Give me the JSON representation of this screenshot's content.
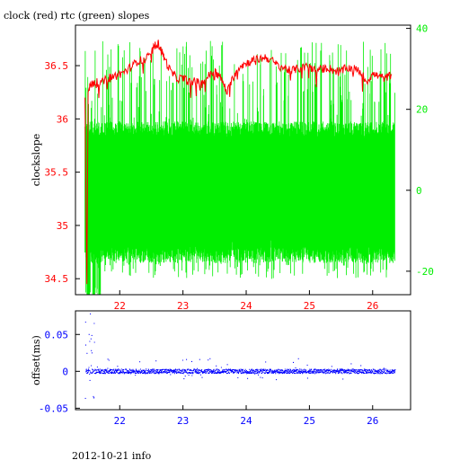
{
  "title": "clock (red) rtc (green) slopes",
  "footer": "2012-10-21 info",
  "colors": {
    "clock": "#ff0000",
    "rtc": "#00ee00",
    "offset": "#0000ff",
    "axis": "#000000"
  },
  "chart_data": [
    {
      "type": "line",
      "title": "clock (red) rtc (green) slopes",
      "ylabel": "clockslope",
      "xlim": [
        21.3,
        26.6
      ],
      "ylim": [
        34.35,
        36.88
      ],
      "y2lim": [
        -25.8,
        40.8
      ],
      "xticks": [
        22,
        23,
        24,
        25,
        26
      ],
      "xticklabels": [
        "22",
        "23",
        "24",
        "25",
        "26"
      ],
      "yticks": [
        34.5,
        35,
        35.5,
        36,
        36.5
      ],
      "yticklabels": [
        "34.5",
        "35",
        "35.5",
        "36",
        "36.5"
      ],
      "y2ticks": [
        -20,
        0,
        20,
        40
      ],
      "y2ticklabels": [
        "-20",
        "0",
        "20",
        "40"
      ],
      "series": [
        {
          "axis": "left",
          "x": [
            21.45,
            21.48,
            21.5,
            21.52,
            21.55,
            21.6,
            21.7,
            21.8,
            21.9,
            22.0,
            22.1,
            22.2,
            22.3,
            22.4,
            22.5,
            22.55,
            22.6,
            22.65,
            22.7,
            22.8,
            22.9,
            23.0,
            23.1,
            23.2,
            23.3,
            23.4,
            23.5,
            23.6,
            23.7,
            23.8,
            23.9,
            24.0,
            24.1,
            24.2,
            24.3,
            24.4,
            24.5,
            24.6,
            24.7,
            24.8,
            24.9,
            25.0,
            25.1,
            25.2,
            25.3,
            25.4,
            25.5,
            25.6,
            25.7,
            25.8,
            25.9,
            26.0,
            26.1,
            26.2,
            26.3
          ],
          "values": [
            36.2,
            34.45,
            36.25,
            36.3,
            36.32,
            36.35,
            36.33,
            36.38,
            36.4,
            36.42,
            36.45,
            36.5,
            36.55,
            36.55,
            36.62,
            36.68,
            36.72,
            36.65,
            36.58,
            36.45,
            36.38,
            36.38,
            36.35,
            36.35,
            36.33,
            36.4,
            36.45,
            36.38,
            36.25,
            36.4,
            36.5,
            36.52,
            36.55,
            36.56,
            36.58,
            36.55,
            36.5,
            36.48,
            36.45,
            36.47,
            36.48,
            36.5,
            36.45,
            36.47,
            36.48,
            36.45,
            36.45,
            36.48,
            36.47,
            36.45,
            36.35,
            36.42,
            36.4,
            36.38,
            36.42
          ]
        },
        {
          "axis": "right",
          "x_range": [
            21.45,
            26.35
          ],
          "core_range": [
            -12,
            15
          ],
          "spike_range": [
            -22,
            37
          ],
          "extreme_low": -30
        }
      ]
    },
    {
      "type": "scatter",
      "ylabel": "offset(ms)",
      "xlim": [
        21.3,
        26.6
      ],
      "ylim": [
        -0.052,
        0.082
      ],
      "xticks": [
        22,
        23,
        24,
        25,
        26
      ],
      "xticklabels": [
        "22",
        "23",
        "24",
        "25",
        "26"
      ],
      "yticks": [
        -0.05,
        0,
        0.05
      ],
      "yticklabels": [
        "-0.05",
        "0",
        "0.05"
      ],
      "series": [
        {
          "x_range": [
            21.45,
            26.35
          ],
          "baseline": 0,
          "max": 0.08,
          "min": -0.04
        }
      ]
    }
  ]
}
